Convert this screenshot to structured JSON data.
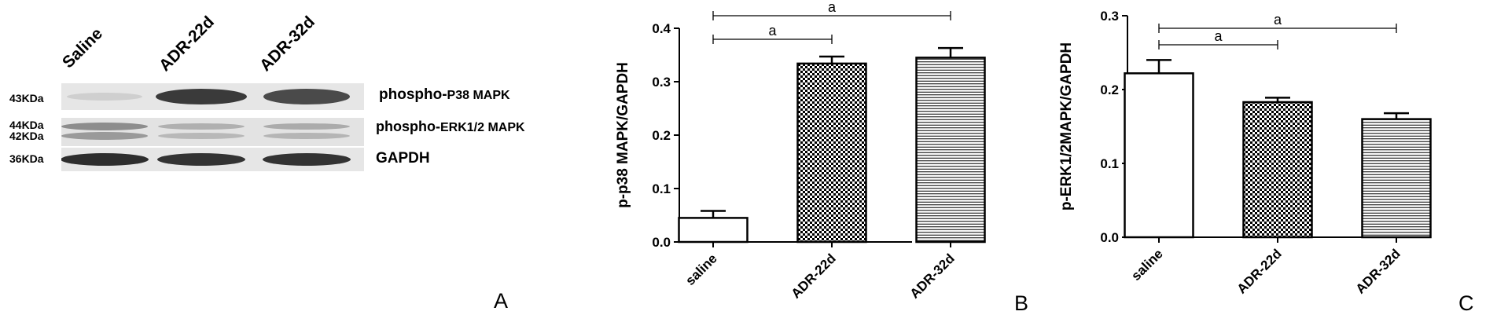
{
  "panel_a": {
    "lanes": [
      "Saline",
      "ADR-22d",
      "ADR-32d"
    ],
    "rows": [
      {
        "kda": [
          "43KDa"
        ],
        "protein_prefix": "phospho-",
        "protein_main": "P38 MAPK"
      },
      {
        "kda": [
          "44KDa",
          "42KDa"
        ],
        "protein_prefix": "phospho-",
        "protein_main": "ERK1/2 MAPK"
      },
      {
        "kda": [
          "36KDa"
        ],
        "protein_prefix": "",
        "protein_main": "GAPDH"
      }
    ],
    "letter": "A"
  },
  "chart_data": [
    {
      "type": "bar",
      "categories": [
        "saline",
        "ADR-22d",
        "ADR-32d"
      ],
      "values": [
        0.045,
        0.334,
        0.345
      ],
      "errors": [
        0.013,
        0.013,
        0.018
      ],
      "ylabel": "p-p38 MAPK/GAPDH",
      "ylim": [
        0,
        0.4
      ],
      "yticks": [
        "0.0",
        "0.1",
        "0.2",
        "0.3",
        "0.4"
      ],
      "patterns": [
        "white",
        "checker",
        "hlines"
      ],
      "significance": [
        {
          "from": 0,
          "to": 1,
          "label": "a"
        },
        {
          "from": 0,
          "to": 2,
          "label": "a"
        }
      ],
      "letter": "B"
    },
    {
      "type": "bar",
      "categories": [
        "saline",
        "ADR-22d",
        "ADR-32d"
      ],
      "values": [
        0.222,
        0.183,
        0.16
      ],
      "errors": [
        0.018,
        0.006,
        0.008
      ],
      "ylabel": "p-ERK1/2MAPK/GAPDH",
      "ylim": [
        0,
        0.3
      ],
      "yticks": [
        "0.0",
        "0.1",
        "0.2",
        "0.3"
      ],
      "patterns": [
        "white",
        "checker",
        "hlines"
      ],
      "significance": [
        {
          "from": 0,
          "to": 1,
          "label": "a"
        },
        {
          "from": 0,
          "to": 2,
          "label": "a"
        }
      ],
      "letter": "C"
    }
  ]
}
